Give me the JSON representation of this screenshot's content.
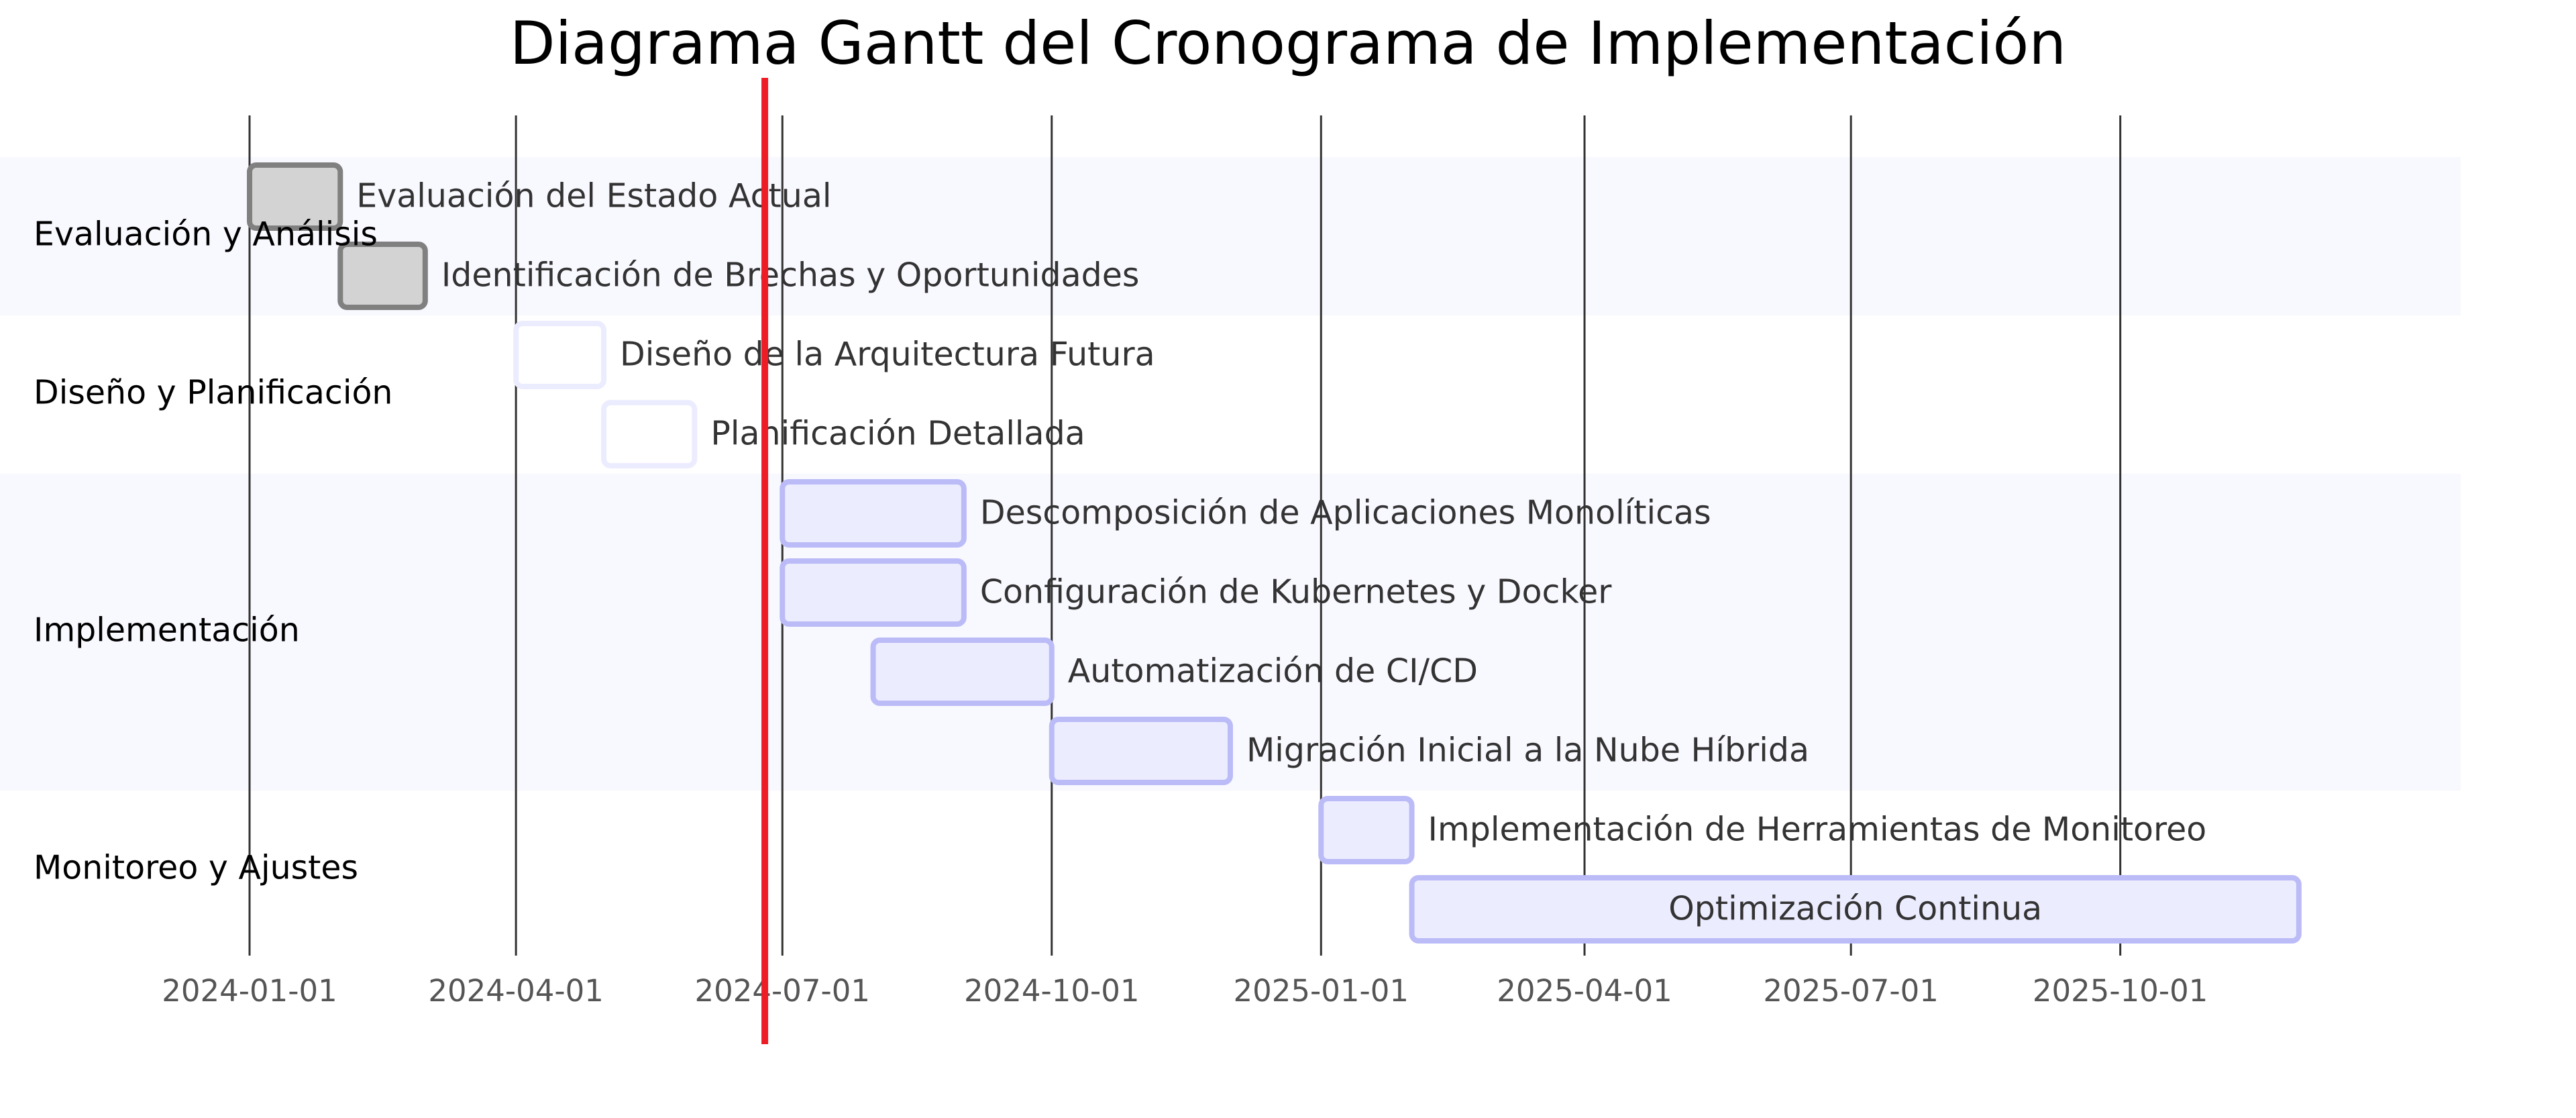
{
  "chart_data": {
    "type": "gantt",
    "title": "Diagrama Gantt del Cronograma de Implementación",
    "x_range": [
      "2024-01-01",
      "2026-01-28"
    ],
    "x_ticks": [
      "2024-01-01",
      "2024-04-01",
      "2024-07-01",
      "2024-10-01",
      "2025-01-01",
      "2025-04-01",
      "2025-07-01",
      "2025-10-01"
    ],
    "today": "2024-06-25",
    "grid": true,
    "sections": [
      {
        "name": "Evaluación y Análisis",
        "tasks": [
          {
            "name": "Evaluación del Estado Actual",
            "start": "2024-01-01",
            "end": "2024-02-01",
            "status": "done"
          },
          {
            "name": "Identificación de Brechas y Oportunidades",
            "start": "2024-02-01",
            "end": "2024-03-01",
            "status": "done"
          }
        ]
      },
      {
        "name": "Diseño y Planificación",
        "tasks": [
          {
            "name": "Diseño de la Arquitectura Futura",
            "start": "2024-04-01",
            "end": "2024-05-01",
            "status": "active"
          },
          {
            "name": "Planificación Detallada",
            "start": "2024-05-01",
            "end": "2024-06-01",
            "status": "active"
          }
        ]
      },
      {
        "name": "Implementación",
        "tasks": [
          {
            "name": "Descomposición de Aplicaciones Monolíticas",
            "start": "2024-07-01",
            "end": "2024-09-01",
            "status": "planned"
          },
          {
            "name": "Configuración de Kubernetes y Docker",
            "start": "2024-07-01",
            "end": "2024-09-01",
            "status": "planned"
          },
          {
            "name": "Automatización de CI/CD",
            "start": "2024-08-01",
            "end": "2024-10-01",
            "status": "planned"
          },
          {
            "name": "Migración Inicial a la Nube Híbrida",
            "start": "2024-10-01",
            "end": "2024-12-01",
            "status": "planned"
          }
        ]
      },
      {
        "name": "Monitoreo y Ajustes",
        "tasks": [
          {
            "name": "Implementación de Herramientas de Monitoreo",
            "start": "2025-01-01",
            "end": "2025-02-01",
            "status": "planned"
          },
          {
            "name": "Optimización Continua",
            "start": "2025-02-01",
            "end": "2025-12-01",
            "status": "planned"
          }
        ]
      }
    ],
    "colors": {
      "done_fill": "#d3d3d3",
      "done_stroke": "#808080",
      "active_fill": "#ffffff",
      "active_stroke": "#ececff",
      "planned_fill": "#ececff",
      "planned_stroke": "#bbbbf7",
      "section_band": "#f8f8ff",
      "grid": "#333333",
      "today": "#ee1c25"
    }
  }
}
